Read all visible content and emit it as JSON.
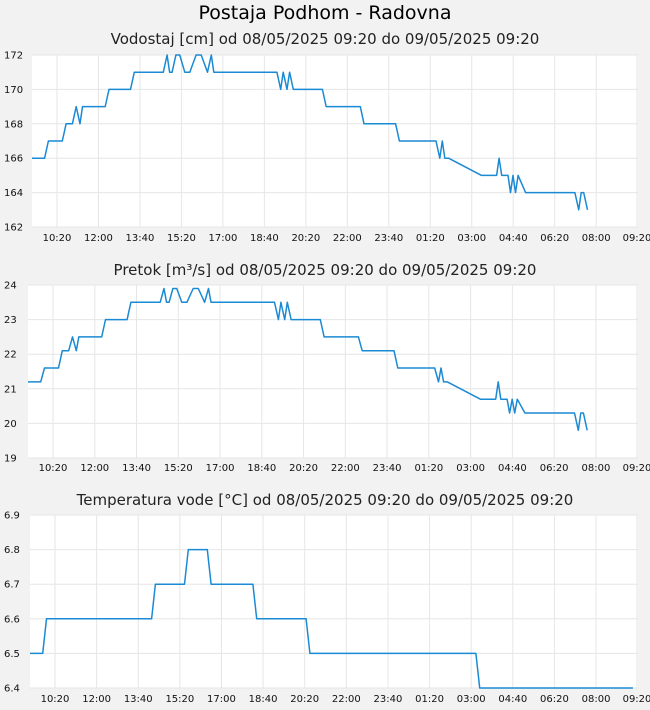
{
  "page_title": "Postaja Podhom - Radovna",
  "chart_data": [
    {
      "type": "line",
      "title": "Vodostaj [cm] od 08/05/2025 09:20 do 09/05/2025 09:20",
      "xlabel": "",
      "ylabel": "",
      "x_ticks": [
        "10:20",
        "12:00",
        "13:40",
        "15:20",
        "17:00",
        "18:40",
        "20:20",
        "22:00",
        "23:40",
        "01:20",
        "03:00",
        "04:40",
        "06:20",
        "08:00",
        "09:20"
      ],
      "y_ticks": [
        162,
        164,
        166,
        168,
        170,
        172
      ],
      "ylim": [
        162,
        172
      ],
      "xlim_hours": [
        0,
        24
      ],
      "grid": true,
      "color": "#1a8ad4",
      "series": [
        {
          "x": [
            0,
            0.5,
            0.65,
            1.2,
            1.35,
            1.6,
            1.75,
            1.9,
            2.0,
            2.1,
            2.2,
            2.9,
            3.05,
            3.9,
            4.05,
            4.6,
            4.75,
            5.2,
            5.35,
            5.45,
            5.55,
            5.7,
            5.85,
            6.05,
            6.25,
            6.5,
            6.7,
            6.95,
            7.1,
            7.2,
            7.3,
            7.45,
            7.6,
            7.75,
            9.7,
            9.85,
            9.95,
            10.1,
            10.2,
            10.35,
            11.5,
            11.65,
            13.0,
            13.15,
            14.4,
            14.55,
            16.0,
            16.15,
            16.25,
            16.35,
            16.5,
            17.8,
            17.95,
            18.4,
            18.5,
            18.6,
            18.85,
            18.95,
            19.05,
            19.15,
            19.25,
            19.55,
            19.65,
            19.75,
            20.0,
            21.5,
            21.65,
            21.75,
            21.85,
            22.0
          ],
          "y": [
            166,
            166,
            167,
            167,
            168,
            168,
            169,
            168,
            169,
            169,
            169,
            169,
            170,
            170,
            171,
            171,
            171,
            171,
            172,
            171,
            171,
            172,
            172,
            171,
            171,
            172,
            172,
            171,
            172,
            171,
            171,
            171,
            171,
            171,
            171,
            170,
            171,
            170,
            171,
            170,
            170,
            169,
            169,
            168,
            168,
            167,
            167,
            166,
            167,
            166,
            166,
            165,
            165,
            165,
            166,
            165,
            165,
            164,
            165,
            164,
            165,
            164,
            164,
            164,
            164,
            164,
            163,
            164,
            164,
            163
          ]
        }
      ]
    },
    {
      "type": "line",
      "title": "Pretok [m³/s] od 08/05/2025 09:20 do 09/05/2025 09:20",
      "xlabel": "",
      "ylabel": "",
      "x_ticks": [
        "10:20",
        "12:00",
        "13:40",
        "15:20",
        "17:00",
        "18:40",
        "20:20",
        "22:00",
        "23:40",
        "01:20",
        "03:00",
        "04:40",
        "06:20",
        "08:00",
        "09:20"
      ],
      "y_ticks": [
        19,
        20,
        21,
        22,
        23,
        24
      ],
      "ylim": [
        19,
        24
      ],
      "xlim_hours": [
        0,
        24
      ],
      "grid": true,
      "color": "#1a8ad4",
      "series": [
        {
          "x": [
            0,
            0.5,
            0.65,
            1.2,
            1.35,
            1.6,
            1.75,
            1.9,
            2.0,
            2.1,
            2.2,
            2.9,
            3.05,
            3.9,
            4.05,
            4.6,
            4.75,
            5.2,
            5.35,
            5.45,
            5.55,
            5.7,
            5.85,
            6.05,
            6.25,
            6.5,
            6.7,
            6.95,
            7.1,
            7.2,
            7.3,
            7.45,
            7.6,
            7.75,
            9.7,
            9.85,
            9.95,
            10.1,
            10.2,
            10.35,
            11.5,
            11.65,
            13.0,
            13.15,
            14.4,
            14.55,
            16.0,
            16.15,
            16.25,
            16.35,
            16.5,
            17.8,
            17.95,
            18.4,
            18.5,
            18.6,
            18.85,
            18.95,
            19.05,
            19.15,
            19.25,
            19.55,
            19.65,
            19.75,
            20.0,
            21.5,
            21.65,
            21.75,
            21.85,
            22.0
          ],
          "y": [
            21.2,
            21.2,
            21.6,
            21.6,
            22.1,
            22.1,
            22.5,
            22.1,
            22.5,
            22.5,
            22.5,
            22.5,
            23.0,
            23.0,
            23.5,
            23.5,
            23.5,
            23.5,
            23.9,
            23.5,
            23.5,
            23.9,
            23.9,
            23.5,
            23.5,
            23.9,
            23.9,
            23.5,
            23.9,
            23.5,
            23.5,
            23.5,
            23.5,
            23.5,
            23.5,
            23.0,
            23.5,
            23.0,
            23.5,
            23.0,
            23.0,
            22.5,
            22.5,
            22.1,
            22.1,
            21.6,
            21.6,
            21.2,
            21.6,
            21.2,
            21.2,
            20.7,
            20.7,
            20.7,
            21.2,
            20.7,
            20.7,
            20.3,
            20.7,
            20.3,
            20.7,
            20.3,
            20.3,
            20.3,
            20.3,
            20.3,
            19.8,
            20.3,
            20.3,
            19.8
          ]
        }
      ]
    },
    {
      "type": "line",
      "title": "Temperatura vode [°C] od 08/05/2025 09:20 do 09/05/2025 09:20",
      "xlabel": "",
      "ylabel": "",
      "x_ticks": [
        "10:20",
        "12:00",
        "13:40",
        "15:20",
        "17:00",
        "18:40",
        "20:20",
        "22:00",
        "23:40",
        "01:20",
        "03:00",
        "04:40",
        "06:20",
        "08:00",
        "09:20"
      ],
      "y_ticks": [
        6.4,
        6.5,
        6.6,
        6.7,
        6.8,
        6.9
      ],
      "ylim": [
        6.4,
        6.9
      ],
      "xlim_hours": [
        0,
        24
      ],
      "grid": true,
      "color": "#1a8ad4",
      "series": [
        {
          "x": [
            0,
            0.5,
            0.65,
            4.8,
            4.95,
            6.1,
            6.25,
            7.0,
            7.15,
            8.8,
            8.95,
            10.9,
            11.05,
            17.6,
            17.75,
            23.8
          ],
          "y": [
            6.5,
            6.5,
            6.6,
            6.6,
            6.7,
            6.7,
            6.8,
            6.8,
            6.7,
            6.7,
            6.6,
            6.6,
            6.5,
            6.5,
            6.4,
            6.4
          ]
        }
      ]
    }
  ]
}
